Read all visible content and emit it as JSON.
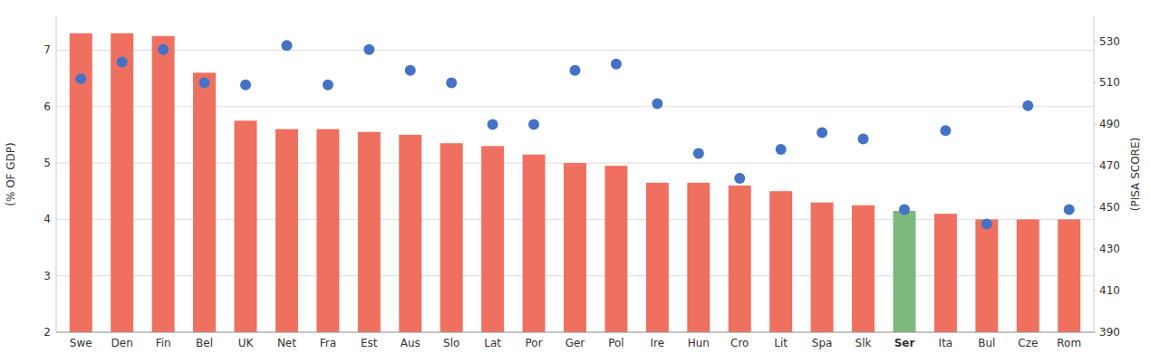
{
  "chart_data": {
    "type": "bar",
    "categories": [
      "Swe",
      "Den",
      "Fin",
      "Bel",
      "UK",
      "Net",
      "Fra",
      "Est",
      "Aus",
      "Slo",
      "Lat",
      "Por",
      "Ger",
      "Pol",
      "Ire",
      "Hun",
      "Cro",
      "Lit",
      "Spa",
      "Slk",
      "Ser",
      "Ita",
      "Bul",
      "Cze",
      "Rom"
    ],
    "series": [
      {
        "type": "bar",
        "values": [
          7.3,
          7.3,
          7.25,
          6.6,
          5.75,
          5.6,
          5.6,
          5.55,
          5.5,
          5.35,
          5.3,
          5.15,
          5.0,
          4.95,
          4.65,
          4.65,
          4.6,
          4.5,
          4.3,
          4.25,
          4.15,
          4.1,
          4.0,
          4.0,
          4.0
        ],
        "colors": [
          "#F07060",
          "#F07060",
          "#F07060",
          "#F07060",
          "#F07060",
          "#F07060",
          "#F07060",
          "#F07060",
          "#F07060",
          "#F07060",
          "#F07060",
          "#F07060",
          "#F07060",
          "#F07060",
          "#F07060",
          "#F07060",
          "#F07060",
          "#F07060",
          "#F07060",
          "#F07060",
          "#7DB87D",
          "#F07060",
          "#F07060",
          "#F07060",
          "#F07060"
        ]
      },
      {
        "type": "scatter",
        "axis": "y2",
        "marker": "circle",
        "color": "#4472C4",
        "values": [
          512,
          520,
          526,
          510,
          509,
          528,
          509,
          526,
          516,
          510,
          490,
          490,
          516,
          519,
          500,
          476,
          464,
          478,
          486,
          483,
          449,
          487,
          442,
          499,
          449
        ]
      }
    ],
    "ylabel": "(% OF GDP)",
    "y2label": "(PISA SCORE)",
    "ylim": [
      2.0,
      7.6
    ],
    "yticks": [
      2,
      3,
      4,
      5,
      6,
      7
    ],
    "y2lim": [
      390.0,
      542.0
    ],
    "y2ticks": [
      390,
      410,
      430,
      450,
      470,
      490,
      510,
      530
    ],
    "grid": true
  }
}
